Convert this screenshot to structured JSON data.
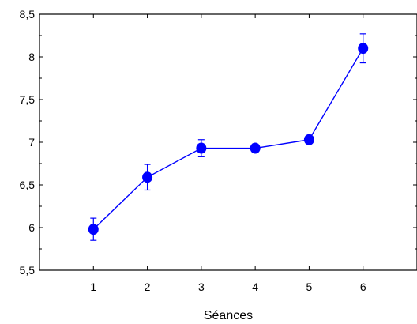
{
  "chart_data": {
    "type": "line",
    "title": "",
    "xlabel": "Séances",
    "ylabel": "",
    "x": [
      1,
      2,
      3,
      4,
      5,
      6
    ],
    "xlim": [
      0,
      7
    ],
    "ylim": [
      5.5,
      8.5
    ],
    "x_ticks": [
      {
        "value": 1,
        "label": "1"
      },
      {
        "value": 2,
        "label": "2"
      },
      {
        "value": 3,
        "label": "3"
      },
      {
        "value": 4,
        "label": "4"
      },
      {
        "value": 5,
        "label": "5"
      },
      {
        "value": 6,
        "label": "6"
      }
    ],
    "y_ticks": [
      {
        "value": 5.5,
        "label": "5,5"
      },
      {
        "value": 6,
        "label": "6"
      },
      {
        "value": 6.5,
        "label": "6,5"
      },
      {
        "value": 7,
        "label": "7"
      },
      {
        "value": 7.5,
        "label": "7,5"
      },
      {
        "value": 8,
        "label": "8"
      },
      {
        "value": 8.5,
        "label": "8,5"
      }
    ],
    "series": [
      {
        "values": [
          5.98,
          6.59,
          6.93,
          6.93,
          7.03,
          8.1
        ],
        "errors": [
          0.13,
          0.15,
          0.1,
          0.03,
          0.04,
          0.17
        ],
        "color": "#0000ff"
      }
    ],
    "grid": false,
    "legend": "none"
  }
}
